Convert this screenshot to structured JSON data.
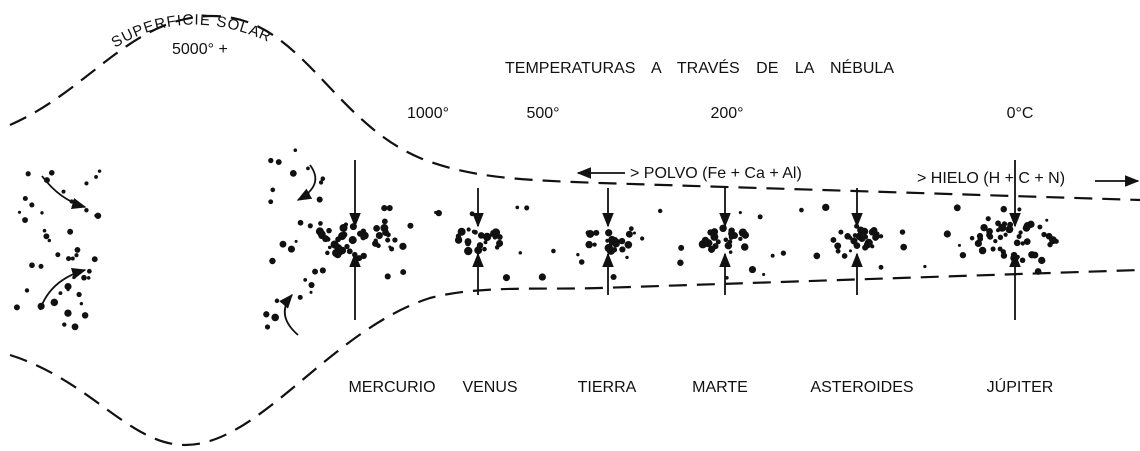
{
  "diagram": {
    "title": "TEMPERATURAS A TRAVÉS DE LA NÉBULA",
    "sun": {
      "label": "SUPERFICIE SOLAR",
      "temperature": "5000° +"
    },
    "temperatures": [
      "1000°",
      "500°",
      "200°",
      "0°C"
    ],
    "flows": [
      "> POLVO (Fe + Ca + Al)",
      "> HIELO (H + C + N)"
    ],
    "bodies": [
      "MERCURIO",
      "VENUS",
      "TIERRA",
      "MARTE",
      "ASTEROIDES",
      "JÚPITER"
    ]
  }
}
